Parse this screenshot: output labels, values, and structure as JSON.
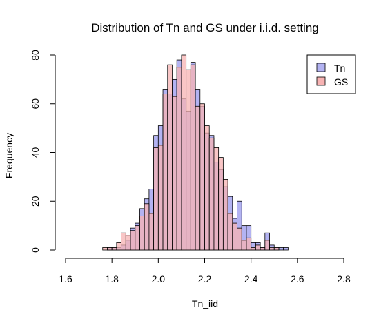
{
  "chart_data": {
    "type": "bar",
    "title": "Distribution of Tn and GS under i.i.d. setting",
    "xlabel": "Tn_iid",
    "ylabel": "Frequency",
    "xlim": [
      1.6,
      2.8
    ],
    "ylim": [
      0,
      80
    ],
    "x_ticks": [
      "1.6",
      "1.8",
      "2.0",
      "2.2",
      "2.4",
      "2.6",
      "2.8"
    ],
    "x_tick_values": [
      1.6,
      1.8,
      2.0,
      2.2,
      2.4,
      2.6,
      2.8
    ],
    "y_ticks": [
      "0",
      "20",
      "40",
      "60",
      "80"
    ],
    "y_tick_values": [
      0,
      20,
      40,
      60,
      80
    ],
    "bin_width": 0.02,
    "grid": false,
    "legend_position": "top-right",
    "series": [
      {
        "name": "Tn",
        "color": "#b3b3f2",
        "bins": [
          [
            1.78,
            1
          ],
          [
            1.8,
            1
          ],
          [
            1.82,
            1
          ],
          [
            1.84,
            2
          ],
          [
            1.86,
            4
          ],
          [
            1.88,
            9
          ],
          [
            1.9,
            11
          ],
          [
            1.92,
            17
          ],
          [
            1.94,
            21
          ],
          [
            1.96,
            25
          ],
          [
            1.98,
            47
          ],
          [
            2.0,
            51
          ],
          [
            2.02,
            66
          ],
          [
            2.04,
            64
          ],
          [
            2.06,
            70
          ],
          [
            2.08,
            78
          ],
          [
            2.1,
            62
          ],
          [
            2.12,
            57
          ],
          [
            2.14,
            77
          ],
          [
            2.16,
            66
          ],
          [
            2.18,
            59
          ],
          [
            2.2,
            48
          ],
          [
            2.22,
            47
          ],
          [
            2.24,
            36
          ],
          [
            2.26,
            33
          ],
          [
            2.28,
            26
          ],
          [
            2.3,
            22
          ],
          [
            2.32,
            13
          ],
          [
            2.34,
            20
          ],
          [
            2.36,
            10
          ],
          [
            2.38,
            10
          ],
          [
            2.4,
            3
          ],
          [
            2.42,
            3
          ],
          [
            2.44,
            1
          ],
          [
            2.46,
            7
          ],
          [
            2.48,
            2
          ],
          [
            2.5,
            1
          ],
          [
            2.52,
            1
          ],
          [
            2.54,
            1
          ]
        ]
      },
      {
        "name": "GS",
        "color": "#f7b3b3",
        "bins": [
          [
            1.76,
            1
          ],
          [
            1.78,
            1
          ],
          [
            1.8,
            1
          ],
          [
            1.82,
            3
          ],
          [
            1.84,
            7
          ],
          [
            1.86,
            6
          ],
          [
            1.88,
            8
          ],
          [
            1.9,
            10
          ],
          [
            1.92,
            14
          ],
          [
            1.94,
            19
          ],
          [
            1.96,
            15
          ],
          [
            1.98,
            42
          ],
          [
            2.0,
            43
          ],
          [
            2.02,
            64
          ],
          [
            2.04,
            76
          ],
          [
            2.06,
            63
          ],
          [
            2.08,
            75
          ],
          [
            2.1,
            80
          ],
          [
            2.12,
            74
          ],
          [
            2.14,
            76
          ],
          [
            2.16,
            59
          ],
          [
            2.18,
            60
          ],
          [
            2.2,
            51
          ],
          [
            2.22,
            46
          ],
          [
            2.24,
            42
          ],
          [
            2.26,
            38
          ],
          [
            2.28,
            29
          ],
          [
            2.3,
            15
          ],
          [
            2.32,
            11
          ],
          [
            2.34,
            9
          ],
          [
            2.36,
            4
          ],
          [
            2.38,
            5
          ],
          [
            2.4,
            1
          ],
          [
            2.42,
            2
          ],
          [
            2.44,
            1
          ],
          [
            2.46,
            4
          ],
          [
            2.48,
            1
          ],
          [
            2.5,
            1
          ]
        ]
      }
    ]
  }
}
